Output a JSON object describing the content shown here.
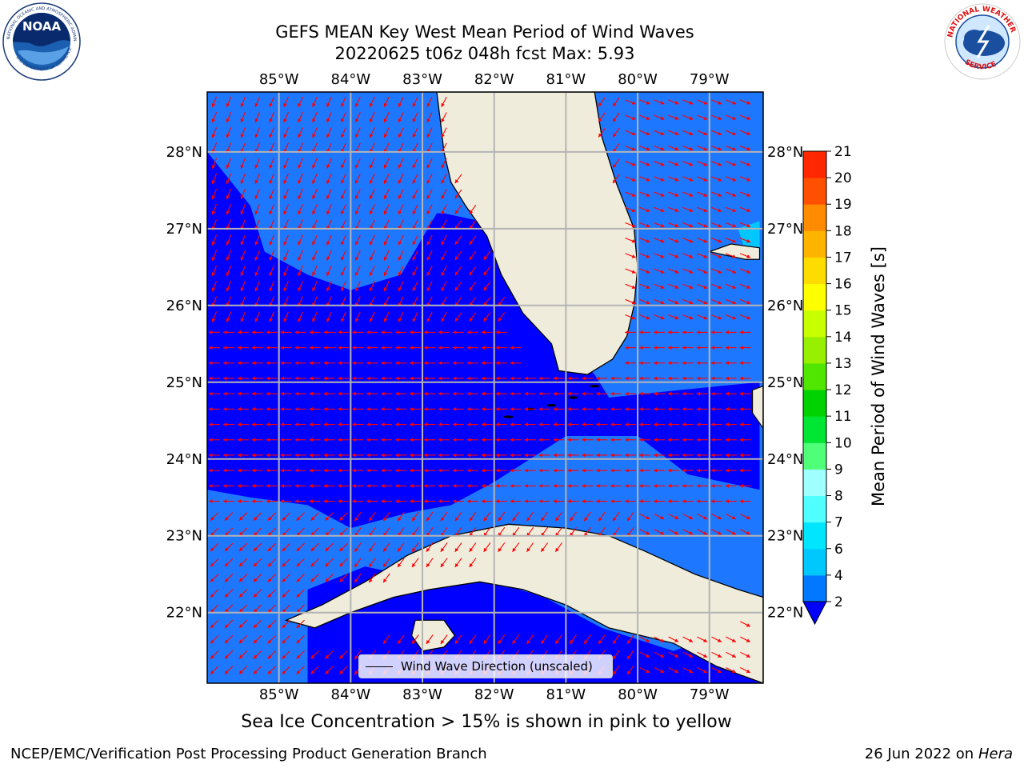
{
  "header": {
    "title_line1": "GEFS MEAN Key West Mean Period of Wind Waves",
    "title_line2": "20220625 t06z 048h fcst   Max: 5.93"
  },
  "logos": {
    "left": {
      "name": "noaa-logo",
      "text": "NOAA",
      "ring_text": "NATIONAL OCEANIC AND ATMOSPHERIC ADMINISTRATION · U.S. DEPARTMENT OF COMMERCE"
    },
    "right": {
      "name": "nws-logo",
      "ring_text": "NATIONAL WEATHER SERVICE"
    }
  },
  "map": {
    "lon_range": [
      -86.0,
      -78.25
    ],
    "lat_range": [
      21.08,
      28.78
    ],
    "lon_ticks": [
      "85°W",
      "84°W",
      "83°W",
      "82°W",
      "81°W",
      "80°W",
      "79°W"
    ],
    "lon_tick_values": [
      -85,
      -84,
      -83,
      -82,
      -81,
      -80,
      -79
    ],
    "lat_ticks": [
      "28°N",
      "27°N",
      "26°N",
      "25°N",
      "24°N",
      "23°N",
      "22°N"
    ],
    "lat_tick_values": [
      28,
      27,
      26,
      25,
      24,
      23,
      22
    ],
    "legend_label": "Wind Wave Direction (unscaled)",
    "colors": {
      "ocean_low": "#0000ff",
      "ocean_mid": "#1e78ff",
      "ocean_high": "#00c8ff",
      "land": "#efecdc",
      "arrow": "#ff0000",
      "grid": "#b4b4b4"
    }
  },
  "colorbar": {
    "label": "Mean Period of Wind Waves [s]",
    "levels": [
      "2",
      "4",
      "6",
      "7",
      "8",
      "9",
      "10",
      "11",
      "12",
      "13",
      "14",
      "15",
      "16",
      "17",
      "18",
      "19",
      "20",
      "21"
    ],
    "colors": [
      "#0078ff",
      "#00c8ff",
      "#00e6ff",
      "#50ffff",
      "#a0ffff",
      "#50ff78",
      "#00e632",
      "#00d200",
      "#50e600",
      "#96f000",
      "#c8ff00",
      "#ffff00",
      "#ffdc00",
      "#ffb400",
      "#ff8c00",
      "#ff5000",
      "#ff2800",
      "#ff0000"
    ],
    "extend_color": "#0000ff"
  },
  "note": "Sea Ice Concentration > 15% is shown in pink to yellow",
  "footer": {
    "left": "NCEP/EMC/Verification Post Processing Product Generation Branch",
    "date": "26 Jun 2022 on",
    "machine": "Hera"
  }
}
